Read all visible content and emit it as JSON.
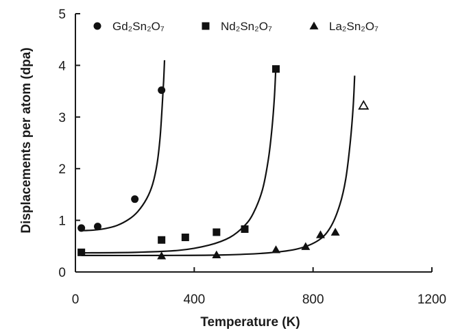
{
  "chart_data": {
    "type": "scatter",
    "xlabel": "Temperature (K)",
    "ylabel": "Displacements per atom (dpa)",
    "xlim": [
      0,
      1200
    ],
    "ylim": [
      0,
      5
    ],
    "x_ticks": [
      0,
      400,
      800,
      1200
    ],
    "y_ticks": [
      0,
      1,
      2,
      3,
      4,
      5
    ],
    "grid": false,
    "legend_position": "top",
    "series": [
      {
        "name": "Gd₂Sn₂O₇",
        "marker": "circle",
        "points": [
          {
            "x": 20,
            "y": 0.85
          },
          {
            "x": 75,
            "y": 0.88
          },
          {
            "x": 200,
            "y": 1.41
          },
          {
            "x": 290,
            "y": 3.52
          }
        ],
        "fit": [
          [
            20,
            0.8
          ],
          [
            60,
            0.81
          ],
          [
            100,
            0.84
          ],
          [
            140,
            0.9
          ],
          [
            180,
            1.02
          ],
          [
            210,
            1.17
          ],
          [
            240,
            1.42
          ],
          [
            260,
            1.7
          ],
          [
            275,
            2.1
          ],
          [
            285,
            2.6
          ],
          [
            292,
            3.2
          ],
          [
            297,
            3.7
          ],
          [
            300,
            4.1
          ]
        ]
      },
      {
        "name": "Nd₂Sn₂O₇",
        "marker": "square",
        "points": [
          {
            "x": 20,
            "y": 0.38
          },
          {
            "x": 290,
            "y": 0.62
          },
          {
            "x": 370,
            "y": 0.67
          },
          {
            "x": 475,
            "y": 0.77
          },
          {
            "x": 570,
            "y": 0.83
          },
          {
            "x": 675,
            "y": 3.93
          }
        ],
        "fit": [
          [
            20,
            0.37
          ],
          [
            200,
            0.38
          ],
          [
            350,
            0.42
          ],
          [
            450,
            0.52
          ],
          [
            520,
            0.67
          ],
          [
            570,
            0.9
          ],
          [
            600,
            1.15
          ],
          [
            630,
            1.6
          ],
          [
            650,
            2.2
          ],
          [
            662,
            2.8
          ],
          [
            670,
            3.4
          ],
          [
            675,
            4.0
          ]
        ]
      },
      {
        "name": "La₂Sn₂O₇",
        "marker": "triangle",
        "points": [
          {
            "x": 290,
            "y": 0.31
          },
          {
            "x": 475,
            "y": 0.33
          },
          {
            "x": 675,
            "y": 0.43
          },
          {
            "x": 775,
            "y": 0.49
          },
          {
            "x": 825,
            "y": 0.72
          },
          {
            "x": 875,
            "y": 0.77
          }
        ],
        "open_points": [
          {
            "x": 970,
            "y": 3.22
          }
        ],
        "fit": [
          [
            20,
            0.32
          ],
          [
            300,
            0.32
          ],
          [
            500,
            0.33
          ],
          [
            650,
            0.37
          ],
          [
            750,
            0.45
          ],
          [
            820,
            0.62
          ],
          [
            860,
            0.88
          ],
          [
            890,
            1.3
          ],
          [
            910,
            1.8
          ],
          [
            925,
            2.5
          ],
          [
            935,
            3.2
          ],
          [
            940,
            3.8
          ]
        ]
      }
    ]
  }
}
